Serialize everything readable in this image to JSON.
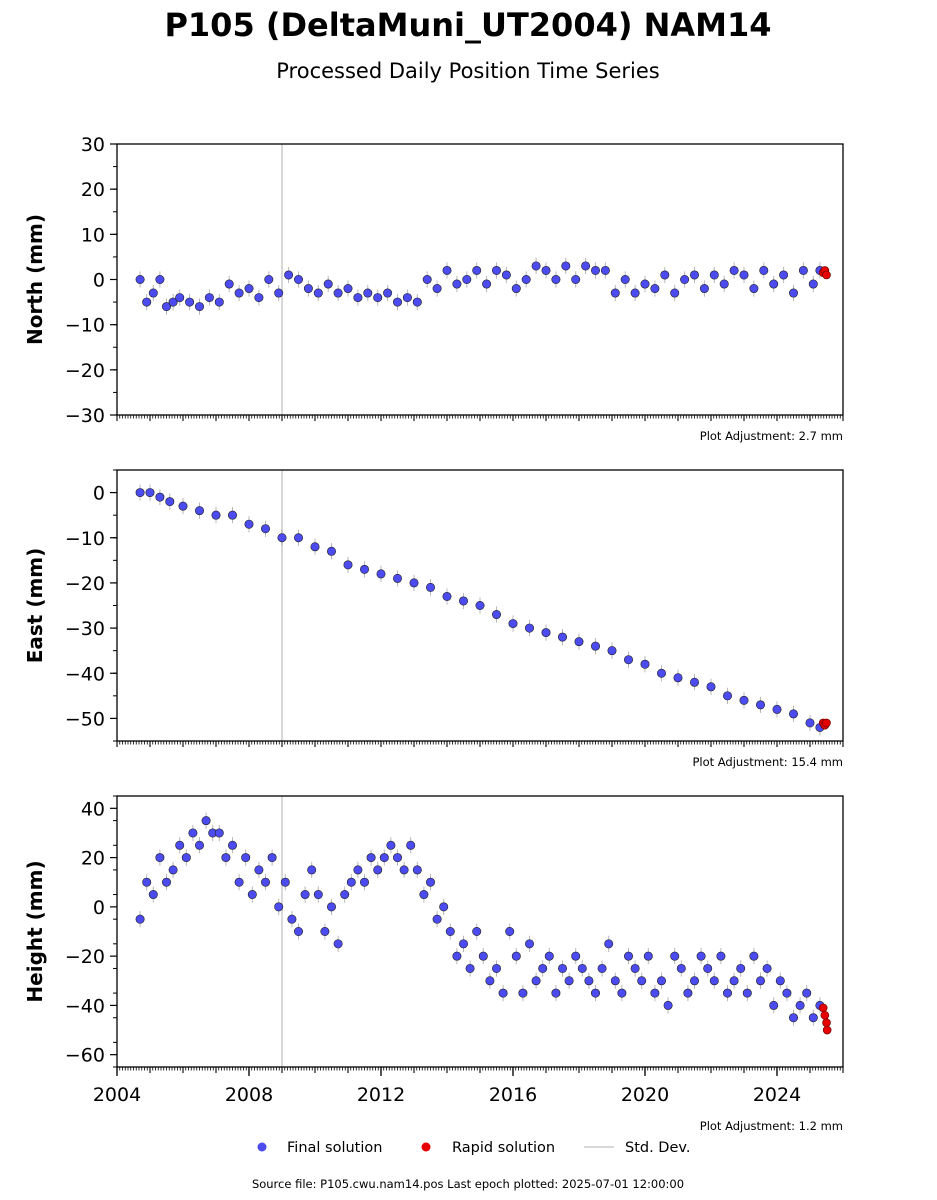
{
  "header": {
    "title": "P105 (DeltaMuni_UT2004) NAM14",
    "subtitle": "Processed Daily Position Time Series"
  },
  "legend": {
    "final": "Final solution",
    "rapid": "Rapid solution",
    "std": "Std. Dev."
  },
  "footer": {
    "source": "Source file: P105.cwu.nam14.pos  Last epoch plotted: 2025-07-01 12:00:00"
  },
  "colors": {
    "final": "#4b4bf0",
    "rapid": "#e60000",
    "std": "#cccccc",
    "equipment_line": "#cccccc"
  },
  "chart_data": [
    {
      "type": "scatter",
      "name": "north",
      "ylabel": "North (mm)",
      "adjustment": "Plot Adjustment: 2.7 mm",
      "ylim": [
        -30,
        30
      ],
      "yticks": [
        30,
        20,
        10,
        0,
        -10,
        -20,
        -30
      ],
      "ytick_labels": [
        "30",
        "20",
        "10",
        "0",
        "−10",
        "−20",
        "−30"
      ],
      "xlim": [
        2004.0,
        2026.0
      ],
      "vline_x": 2009.0,
      "final_series": {
        "x": [
          2004.7,
          2004.9,
          2005.1,
          2005.3,
          2005.5,
          2005.7,
          2005.9,
          2006.2,
          2006.5,
          2006.8,
          2007.1,
          2007.4,
          2007.7,
          2008.0,
          2008.3,
          2008.6,
          2008.9,
          2009.2,
          2009.5,
          2009.8,
          2010.1,
          2010.4,
          2010.7,
          2011.0,
          2011.3,
          2011.6,
          2011.9,
          2012.2,
          2012.5,
          2012.8,
          2013.1,
          2013.4,
          2013.7,
          2014.0,
          2014.3,
          2014.6,
          2014.9,
          2015.2,
          2015.5,
          2015.8,
          2016.1,
          2016.4,
          2016.7,
          2017.0,
          2017.3,
          2017.6,
          2017.9,
          2018.2,
          2018.5,
          2018.8,
          2019.1,
          2019.4,
          2019.7,
          2020.0,
          2020.3,
          2020.6,
          2020.9,
          2021.2,
          2021.5,
          2021.8,
          2022.1,
          2022.4,
          2022.7,
          2023.0,
          2023.3,
          2023.6,
          2023.9,
          2024.2,
          2024.5,
          2024.8,
          2025.1,
          2025.3
        ],
        "y": [
          0,
          -5,
          -3,
          0,
          -6,
          -5,
          -4,
          -5,
          -6,
          -4,
          -5,
          -1,
          -3,
          -2,
          -4,
          0,
          -3,
          1,
          0,
          -2,
          -3,
          -1,
          -3,
          -2,
          -4,
          -3,
          -4,
          -3,
          -5,
          -4,
          -5,
          0,
          -2,
          2,
          -1,
          0,
          2,
          -1,
          2,
          1,
          -2,
          0,
          3,
          2,
          0,
          3,
          0,
          3,
          2,
          2,
          -3,
          0,
          -3,
          -1,
          -2,
          1,
          -3,
          0,
          1,
          -2,
          1,
          -1,
          2,
          1,
          -2,
          2,
          -1,
          1,
          -3,
          2,
          -1,
          2
        ]
      },
      "rapid_series": {
        "x": [
          2025.4,
          2025.45,
          2025.5
        ],
        "y": [
          1.5,
          2,
          1
        ]
      }
    },
    {
      "type": "scatter",
      "name": "east",
      "ylabel": "East (mm)",
      "adjustment": "Plot Adjustment: 15.4 mm",
      "ylim": [
        -55,
        5
      ],
      "yticks": [
        0,
        -10,
        -20,
        -30,
        -40,
        -50
      ],
      "ytick_labels": [
        "0",
        "−10",
        "−20",
        "−30",
        "−40",
        "−50"
      ],
      "xlim": [
        2004.0,
        2026.0
      ],
      "vline_x": 2009.0,
      "final_series": {
        "x": [
          2004.7,
          2005.0,
          2005.3,
          2005.6,
          2006.0,
          2006.5,
          2007.0,
          2007.5,
          2008.0,
          2008.5,
          2009.0,
          2009.5,
          2010.0,
          2010.5,
          2011.0,
          2011.5,
          2012.0,
          2012.5,
          2013.0,
          2013.5,
          2014.0,
          2014.5,
          2015.0,
          2015.5,
          2016.0,
          2016.5,
          2017.0,
          2017.5,
          2018.0,
          2018.5,
          2019.0,
          2019.5,
          2020.0,
          2020.5,
          2021.0,
          2021.5,
          2022.0,
          2022.5,
          2023.0,
          2023.5,
          2024.0,
          2024.5,
          2025.0,
          2025.3
        ],
        "y": [
          0,
          0,
          -1,
          -2,
          -3,
          -4,
          -5,
          -5,
          -7,
          -8,
          -10,
          -10,
          -12,
          -13,
          -16,
          -17,
          -18,
          -19,
          -20,
          -21,
          -23,
          -24,
          -25,
          -27,
          -29,
          -30,
          -31,
          -32,
          -33,
          -34,
          -35,
          -37,
          -38,
          -40,
          -41,
          -42,
          -43,
          -45,
          -46,
          -47,
          -48,
          -49,
          -51,
          -52
        ]
      },
      "rapid_series": {
        "x": [
          2025.4,
          2025.45,
          2025.5
        ],
        "y": [
          -51,
          -51.5,
          -51
        ]
      }
    },
    {
      "type": "scatter",
      "name": "height",
      "ylabel": "Height (mm)",
      "adjustment": "Plot Adjustment: 1.2 mm",
      "ylim": [
        -65,
        45
      ],
      "yticks": [
        40,
        20,
        0,
        -20,
        -40,
        -60
      ],
      "ytick_labels": [
        "40",
        "20",
        "0",
        "−20",
        "−40",
        "−60"
      ],
      "xlim": [
        2004.0,
        2026.0
      ],
      "xticks": [
        2004,
        2008,
        2012,
        2016,
        2020,
        2024
      ],
      "xtick_labels": [
        "2004",
        "2008",
        "2012",
        "2016",
        "2020",
        "2024"
      ],
      "vline_x": 2009.0,
      "final_series": {
        "x": [
          2004.7,
          2004.9,
          2005.1,
          2005.3,
          2005.5,
          2005.7,
          2005.9,
          2006.1,
          2006.3,
          2006.5,
          2006.7,
          2006.9,
          2007.1,
          2007.3,
          2007.5,
          2007.7,
          2007.9,
          2008.1,
          2008.3,
          2008.5,
          2008.7,
          2008.9,
          2009.1,
          2009.3,
          2009.5,
          2009.7,
          2009.9,
          2010.1,
          2010.3,
          2010.5,
          2010.7,
          2010.9,
          2011.1,
          2011.3,
          2011.5,
          2011.7,
          2011.9,
          2012.1,
          2012.3,
          2012.5,
          2012.7,
          2012.9,
          2013.1,
          2013.3,
          2013.5,
          2013.7,
          2013.9,
          2014.1,
          2014.3,
          2014.5,
          2014.7,
          2014.9,
          2015.1,
          2015.3,
          2015.5,
          2015.7,
          2015.9,
          2016.1,
          2016.3,
          2016.5,
          2016.7,
          2016.9,
          2017.1,
          2017.3,
          2017.5,
          2017.7,
          2017.9,
          2018.1,
          2018.3,
          2018.5,
          2018.7,
          2018.9,
          2019.1,
          2019.3,
          2019.5,
          2019.7,
          2019.9,
          2020.1,
          2020.3,
          2020.5,
          2020.7,
          2020.9,
          2021.1,
          2021.3,
          2021.5,
          2021.7,
          2021.9,
          2022.1,
          2022.3,
          2022.5,
          2022.7,
          2022.9,
          2023.1,
          2023.3,
          2023.5,
          2023.7,
          2023.9,
          2024.1,
          2024.3,
          2024.5,
          2024.7,
          2024.9,
          2025.1,
          2025.3
        ],
        "y": [
          -5,
          10,
          5,
          20,
          10,
          15,
          25,
          20,
          30,
          25,
          35,
          30,
          30,
          20,
          25,
          10,
          20,
          5,
          15,
          10,
          20,
          0,
          10,
          -5,
          -10,
          5,
          15,
          5,
          -10,
          0,
          -15,
          5,
          10,
          15,
          10,
          20,
          15,
          20,
          25,
          20,
          15,
          25,
          15,
          5,
          10,
          -5,
          0,
          -10,
          -20,
          -15,
          -25,
          -10,
          -20,
          -30,
          -25,
          -35,
          -10,
          -20,
          -35,
          -15,
          -30,
          -25,
          -20,
          -35,
          -25,
          -30,
          -20,
          -25,
          -30,
          -35,
          -25,
          -15,
          -30,
          -35,
          -20,
          -25,
          -30,
          -20,
          -35,
          -30,
          -40,
          -20,
          -25,
          -35,
          -30,
          -20,
          -25,
          -30,
          -20,
          -35,
          -30,
          -25,
          -35,
          -20,
          -30,
          -25,
          -40,
          -30,
          -35,
          -45,
          -40,
          -35,
          -45,
          -40
        ]
      },
      "rapid_series": {
        "x": [
          2025.4,
          2025.45,
          2025.5,
          2025.52
        ],
        "y": [
          -41,
          -44,
          -47,
          -50
        ]
      }
    }
  ]
}
